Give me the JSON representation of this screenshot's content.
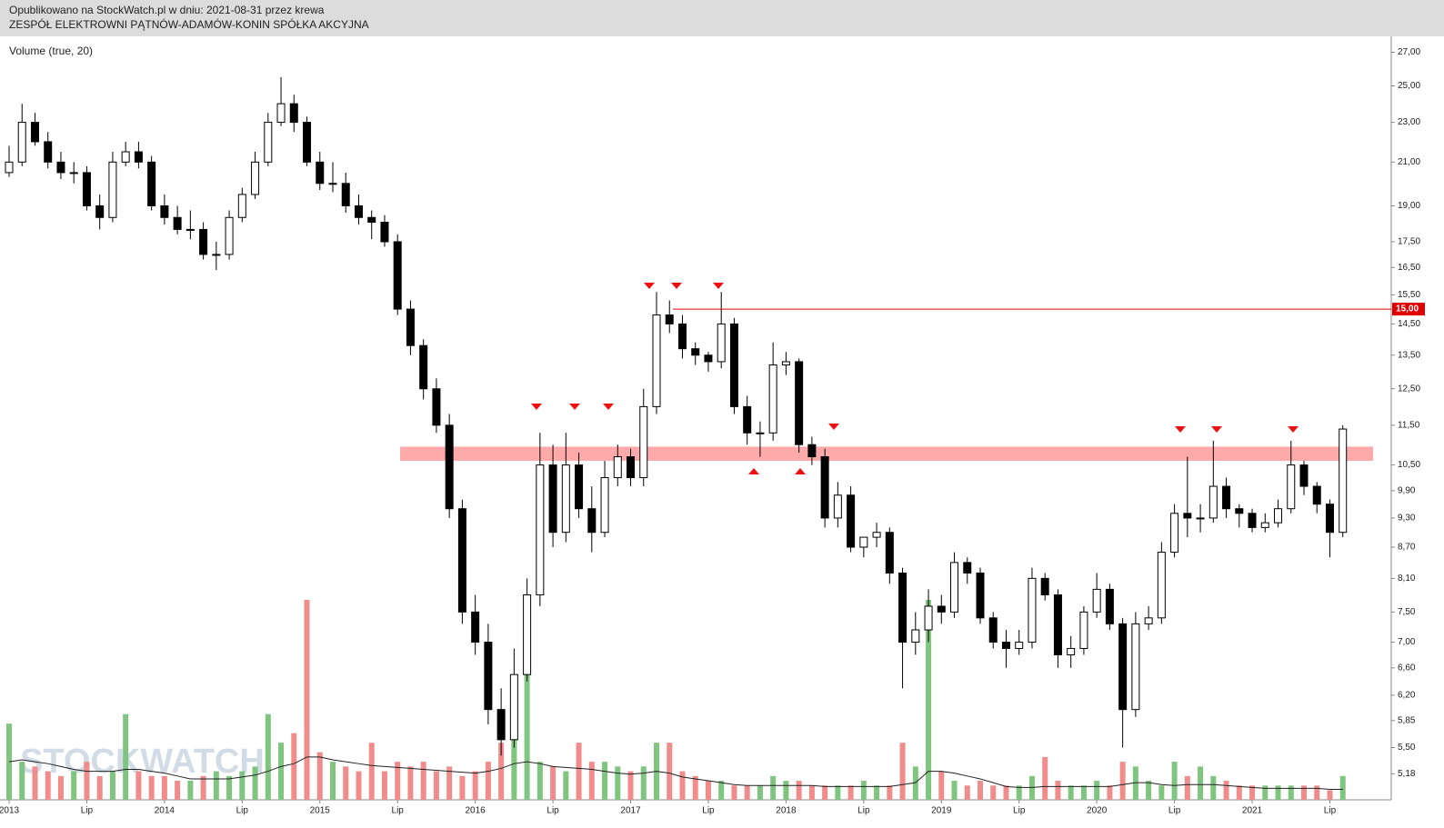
{
  "header": {
    "published": "Opublikowano na StockWatch.pl w dniu: 2021-08-31 przez krewa",
    "name": "ZESPÓŁ  ELEKTROWNI  PĄTNÓW-ADAMÓW-KONIN  SPÓŁKA  AKCYJNA"
  },
  "chart_data": {
    "type": "candlestick",
    "indicator": "Volume (true, 20)",
    "watermark": "STOCKWATCH",
    "log_scale": true,
    "ylim": [
      4.88,
      28
    ],
    "yticks": [
      {
        "value": 27,
        "label": "27,00"
      },
      {
        "value": 25,
        "label": "25,00"
      },
      {
        "value": 23,
        "label": "23,00"
      },
      {
        "value": 21,
        "label": "21,00"
      },
      {
        "value": 19,
        "label": "19,00"
      },
      {
        "value": 17.5,
        "label": "17,50"
      },
      {
        "value": 16.5,
        "label": "16,50"
      },
      {
        "value": 15.5,
        "label": "15,50"
      },
      {
        "value": 14.5,
        "label": "14,50"
      },
      {
        "value": 13.5,
        "label": "13,50"
      },
      {
        "value": 12.5,
        "label": "12,50"
      },
      {
        "value": 11.5,
        "label": "11,50"
      },
      {
        "value": 10.5,
        "label": "10,50"
      },
      {
        "value": 9.9,
        "label": "9,90"
      },
      {
        "value": 9.3,
        "label": "9,30"
      },
      {
        "value": 8.7,
        "label": "8,70"
      },
      {
        "value": 8.1,
        "label": "8,10"
      },
      {
        "value": 7.5,
        "label": "7,50"
      },
      {
        "value": 7,
        "label": "7,00"
      },
      {
        "value": 6.6,
        "label": "6,60"
      },
      {
        "value": 6.2,
        "label": "6,20"
      },
      {
        "value": 5.85,
        "label": "5,85"
      },
      {
        "value": 5.5,
        "label": "5,50"
      },
      {
        "value": 5.18,
        "label": "5,18"
      }
    ],
    "categories": [
      "2013",
      null,
      null,
      null,
      null,
      null,
      "Lip",
      null,
      null,
      null,
      null,
      null,
      "2014",
      null,
      null,
      null,
      null,
      null,
      "Lip",
      null,
      null,
      null,
      null,
      null,
      "2015",
      null,
      null,
      null,
      null,
      null,
      "Lip",
      null,
      null,
      null,
      null,
      null,
      "2016",
      null,
      null,
      null,
      null,
      null,
      "Lip",
      null,
      null,
      null,
      null,
      null,
      "2017",
      null,
      null,
      null,
      null,
      null,
      "Lip",
      null,
      null,
      null,
      null,
      null,
      "2018",
      null,
      null,
      null,
      null,
      null,
      "Lip",
      null,
      null,
      null,
      null,
      null,
      "2019",
      null,
      null,
      null,
      null,
      null,
      "Lip",
      null,
      null,
      null,
      null,
      null,
      "2020",
      null,
      null,
      null,
      null,
      null,
      "Lip",
      null,
      null,
      null,
      null,
      null,
      "2021",
      null,
      null,
      null,
      null,
      null,
      "Lip",
      null
    ],
    "open": [
      20.5,
      21,
      23,
      22,
      21,
      20.5,
      20.5,
      19,
      18.5,
      21,
      21.5,
      21,
      19,
      18.5,
      18,
      18,
      17,
      17,
      18.5,
      19.5,
      21,
      23,
      24,
      23,
      21,
      20,
      20,
      19,
      18.5,
      18.3,
      17.5,
      15,
      13.8,
      12.5,
      11.5,
      9.5,
      7.5,
      7,
      6,
      5.6,
      6.5,
      7.8,
      10.5,
      9,
      10.5,
      9.5,
      9,
      10.2,
      10.7,
      10.2,
      12,
      14.8,
      14.5,
      13.7,
      13.5,
      13.3,
      14.5,
      12,
      11.3,
      11.3,
      13.2,
      13.3,
      11,
      10.7,
      9.3,
      9.8,
      8.7,
      8.9,
      9,
      8.2,
      7,
      7.2,
      7.6,
      7.5,
      8.4,
      8.2,
      7.4,
      7,
      6.9,
      7,
      8.1,
      7.8,
      6.8,
      6.9,
      7.5,
      7.9,
      7.3,
      6,
      7.3,
      7.4,
      8.6,
      9.4,
      9.3,
      9.3,
      10,
      9.5,
      9.4,
      9.1,
      9.2,
      9.5,
      10.5,
      10,
      9.6,
      9
    ],
    "high": [
      21.8,
      24,
      23.5,
      22.5,
      21.5,
      21,
      20.8,
      19.5,
      21.5,
      22,
      22,
      21.3,
      19.5,
      19,
      18.8,
      18.3,
      17.5,
      18.8,
      19.8,
      21.5,
      23.5,
      25.5,
      24.5,
      23.3,
      21.5,
      21,
      20.5,
      19.5,
      18.8,
      18.6,
      17.8,
      15.3,
      14,
      12.8,
      11.8,
      9.7,
      7.8,
      7.3,
      6.3,
      6.9,
      8.1,
      11.3,
      11,
      11.3,
      10.8,
      10,
      10.6,
      11,
      10.9,
      12.5,
      15.6,
      15.3,
      14.8,
      13.9,
      13.6,
      15.6,
      14.7,
      12.3,
      11.6,
      13.9,
      13.6,
      13.4,
      11.2,
      10.9,
      10.1,
      10,
      8.9,
      9.2,
      9.1,
      8.3,
      7.5,
      7.9,
      7.8,
      8.6,
      8.5,
      8.3,
      7.5,
      7.2,
      7.2,
      8.3,
      8.2,
      7.9,
      7.1,
      7.6,
      8.2,
      8,
      7.4,
      7.5,
      7.6,
      8.8,
      9.6,
      10.7,
      9.6,
      11.1,
      10.2,
      9.6,
      9.5,
      9.4,
      9.7,
      11.1,
      10.6,
      10.1,
      9.7,
      11.5
    ],
    "low": [
      20.3,
      20.8,
      21.8,
      20.7,
      20.2,
      20,
      18.8,
      18,
      18.3,
      20.8,
      20.7,
      18.8,
      18.2,
      17.8,
      17.6,
      16.8,
      16.4,
      16.8,
      18.3,
      19.3,
      20.8,
      22.8,
      22.5,
      20.8,
      19.7,
      19.6,
      18.7,
      18.2,
      17.6,
      17.3,
      14.8,
      13.5,
      12.2,
      11.3,
      9.3,
      7.3,
      6.8,
      5.8,
      5.4,
      5.5,
      6.4,
      7.6,
      8.7,
      8.8,
      9.3,
      8.6,
      8.9,
      10,
      10,
      10,
      11.8,
      14.2,
      13.4,
      13.2,
      13,
      13.1,
      11.8,
      11,
      10.7,
      11.1,
      12.9,
      10.8,
      10.5,
      9.1,
      9.1,
      8.6,
      8.5,
      8.7,
      8,
      6.3,
      6.8,
      7,
      7.3,
      7.4,
      8,
      7.3,
      6.9,
      6.6,
      6.8,
      6.9,
      7.7,
      6.6,
      6.6,
      6.8,
      7.4,
      7.2,
      5.5,
      5.9,
      7.2,
      7.3,
      8.5,
      8.9,
      9,
      9.2,
      9.3,
      9.1,
      9,
      9,
      9.1,
      9.4,
      9.8,
      9.4,
      8.5,
      8.9
    ],
    "close": [
      21,
      23,
      22,
      21,
      20.5,
      20.5,
      19,
      18.5,
      21,
      21.5,
      21,
      19,
      18.5,
      18,
      18,
      17,
      17,
      18.5,
      19.5,
      21,
      23,
      24,
      23,
      21,
      20,
      20,
      19,
      18.5,
      18.3,
      17.5,
      15,
      13.8,
      12.5,
      11.5,
      9.5,
      7.5,
      7,
      6,
      5.6,
      6.5,
      7.8,
      10.5,
      9,
      10.5,
      9.5,
      9,
      10.2,
      10.7,
      10.2,
      12,
      14.8,
      14.5,
      13.7,
      13.5,
      13.3,
      14.5,
      12,
      11.3,
      11.3,
      13.2,
      13.3,
      11,
      10.7,
      9.3,
      9.8,
      8.7,
      8.9,
      9,
      8.2,
      7,
      7.2,
      7.6,
      7.5,
      8.4,
      8.2,
      7.4,
      7,
      6.9,
      7,
      8.1,
      7.8,
      6.8,
      6.9,
      7.5,
      7.9,
      7.3,
      6,
      7.3,
      7.4,
      8.6,
      9.4,
      9.3,
      9.3,
      10,
      9.5,
      9.4,
      9.1,
      9.2,
      9.5,
      10.5,
      10,
      9.6,
      9,
      11.4
    ],
    "volume": [
      80,
      40,
      35,
      30,
      25,
      30,
      40,
      25,
      30,
      90,
      30,
      25,
      25,
      20,
      20,
      25,
      30,
      25,
      30,
      35,
      90,
      60,
      70,
      210,
      50,
      40,
      35,
      30,
      60,
      30,
      40,
      35,
      40,
      30,
      35,
      25,
      30,
      40,
      60,
      90,
      145,
      40,
      35,
      30,
      60,
      40,
      40,
      35,
      30,
      35,
      60,
      60,
      30,
      25,
      20,
      20,
      15,
      15,
      15,
      25,
      20,
      20,
      15,
      15,
      15,
      15,
      20,
      15,
      15,
      60,
      35,
      210,
      30,
      20,
      15,
      20,
      15,
      15,
      15,
      25,
      45,
      20,
      15,
      15,
      20,
      15,
      40,
      35,
      20,
      15,
      40,
      25,
      35,
      25,
      20,
      15,
      15,
      15,
      15,
      15,
      15,
      15,
      10,
      25
    ],
    "volume_ma": [
      40,
      42,
      40,
      38,
      35,
      32,
      30,
      30,
      30,
      32,
      32,
      30,
      28,
      25,
      22,
      22,
      22,
      22,
      24,
      26,
      30,
      35,
      38,
      45,
      45,
      42,
      40,
      38,
      36,
      35,
      34,
      33,
      32,
      31,
      30,
      29,
      28,
      30,
      33,
      38,
      40,
      38,
      35,
      34,
      33,
      32,
      30,
      28,
      27,
      28,
      30,
      28,
      24,
      22,
      20,
      18,
      16,
      15,
      15,
      15,
      15,
      15,
      15,
      14,
      14,
      14,
      14,
      14,
      14,
      16,
      18,
      30,
      30,
      28,
      25,
      22,
      18,
      14,
      13,
      13,
      14,
      14,
      14,
      14,
      14,
      14,
      16,
      18,
      18,
      16,
      15,
      16,
      16,
      16,
      15,
      14,
      13,
      12,
      12,
      12,
      12,
      12,
      11,
      11
    ],
    "up_color": "#7fc47f",
    "down_color": "#f08c8c",
    "level_line": {
      "value": 15,
      "label": "15,00",
      "color": "#e00000"
    },
    "zone": {
      "ylim": [
        10.6,
        10.95
      ],
      "color": "#ffaaaa"
    }
  }
}
